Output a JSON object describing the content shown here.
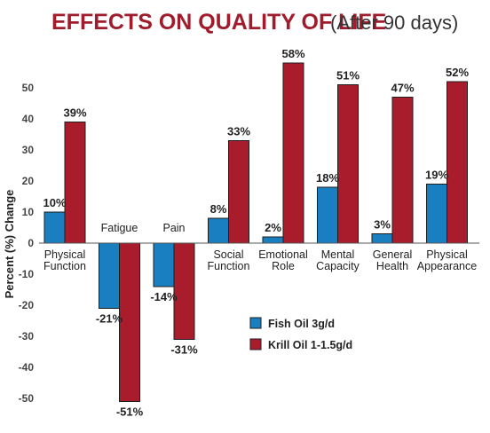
{
  "chart_data": {
    "type": "bar",
    "title": "EFFECTS ON QUALITY OF LIFE",
    "subtitle": "(After 90 days)",
    "ylabel": "Percent (%) Change",
    "xlabel": "",
    "ylim": [
      -55,
      60
    ],
    "yticks": [
      50,
      40,
      30,
      20,
      10,
      0,
      -10,
      -20,
      -30,
      -40,
      -50
    ],
    "ytick_labels": [
      "50",
      "40",
      "30",
      "20",
      "10",
      "0",
      "-10",
      "-20",
      "-30",
      "-40",
      "-50"
    ],
    "categories": [
      [
        "Physical",
        "Function"
      ],
      [
        "Fatigue"
      ],
      [
        "Pain"
      ],
      [
        "Social",
        "Function"
      ],
      [
        "Emotional",
        "Role"
      ],
      [
        "Mental",
        "Capacity"
      ],
      [
        "General",
        "Health"
      ],
      [
        "Physical",
        "Appearance"
      ]
    ],
    "series": [
      {
        "name": "Fish Oil 3g/d",
        "color": "#1a7fc1",
        "values": [
          10,
          -21,
          -14,
          8,
          2,
          18,
          3,
          19
        ],
        "labels": [
          "10%",
          "-21%",
          "-14%",
          "8%",
          "2%",
          "18%",
          "3%",
          "19%"
        ]
      },
      {
        "name": "Krill Oil 1-1.5g/d",
        "color": "#a81c2c",
        "values": [
          39,
          -51,
          -31,
          33,
          58,
          51,
          47,
          52
        ],
        "labels": [
          "39%",
          "-51%",
          "-31%",
          "33%",
          "58%",
          "51%",
          "47%",
          "52%"
        ]
      }
    ],
    "legend": "center-right",
    "grid": false
  }
}
